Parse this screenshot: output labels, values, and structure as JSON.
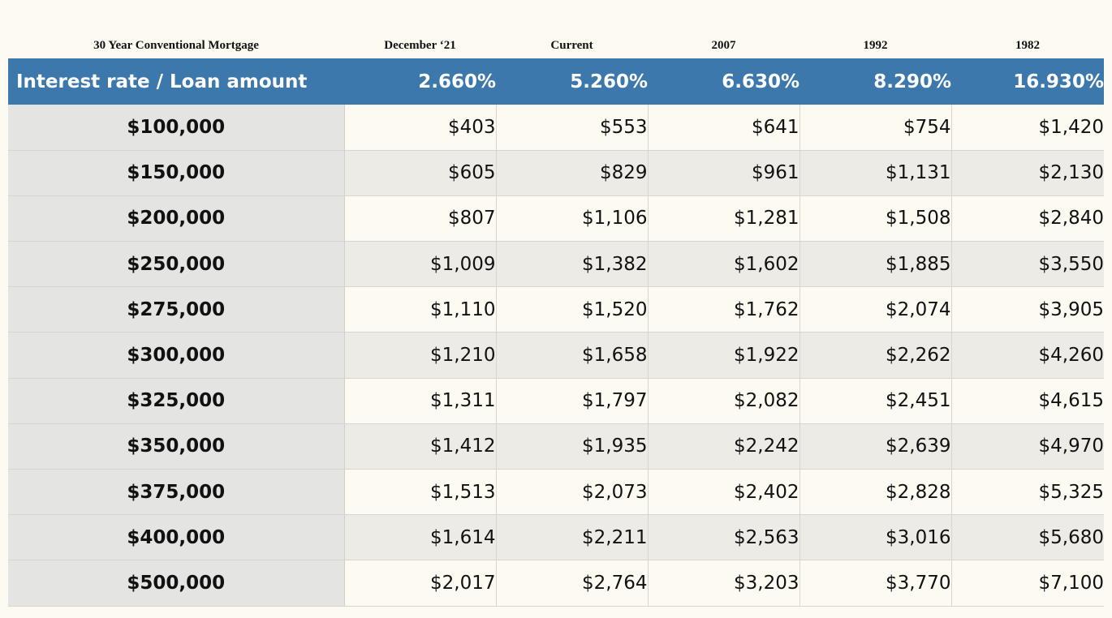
{
  "headers": {
    "col0": "30 Year Conventional Mortgage",
    "col1": "December ‘21",
    "col2": "Current",
    "col3": "2007",
    "col4": "1992",
    "col5": "1982"
  },
  "rate_row": {
    "label": "Interest rate / Loan amount",
    "rates": [
      "2.660%",
      "5.260%",
      "6.630%",
      "8.290%",
      "16.930%"
    ]
  },
  "rows": [
    {
      "amount": "$100,000",
      "values": [
        "$403",
        "$553",
        "$641",
        "$754",
        "$1,420"
      ]
    },
    {
      "amount": "$150,000",
      "values": [
        "$605",
        "$829",
        "$961",
        "$1,131",
        "$2,130"
      ]
    },
    {
      "amount": "$200,000",
      "values": [
        "$807",
        "$1,106",
        "$1,281",
        "$1,508",
        "$2,840"
      ]
    },
    {
      "amount": "$250,000",
      "values": [
        "$1,009",
        "$1,382",
        "$1,602",
        "$1,885",
        "$3,550"
      ]
    },
    {
      "amount": "$275,000",
      "values": [
        "$1,110",
        "$1,520",
        "$1,762",
        "$2,074",
        "$3,905"
      ]
    },
    {
      "amount": "$300,000",
      "values": [
        "$1,210",
        "$1,658",
        "$1,922",
        "$2,262",
        "$4,260"
      ]
    },
    {
      "amount": "$325,000",
      "values": [
        "$1,311",
        "$1,797",
        "$2,082",
        "$2,451",
        "$4,615"
      ]
    },
    {
      "amount": "$350,000",
      "values": [
        "$1,412",
        "$1,935",
        "$2,242",
        "$2,639",
        "$4,970"
      ]
    },
    {
      "amount": "$375,000",
      "values": [
        "$1,513",
        "$2,073",
        "$2,402",
        "$2,828",
        "$5,325"
      ]
    },
    {
      "amount": "$400,000",
      "values": [
        "$1,614",
        "$2,211",
        "$2,563",
        "$3,016",
        "$5,680"
      ]
    },
    {
      "amount": "$500,000",
      "values": [
        "$2,017",
        "$2,764",
        "$3,203",
        "$3,770",
        "$7,100"
      ]
    }
  ],
  "colors": {
    "header_bar": "#3d78ad",
    "amount_column": "#e4e4e2",
    "row_light": "#fdfbf1",
    "row_dark": "#edebe6"
  }
}
